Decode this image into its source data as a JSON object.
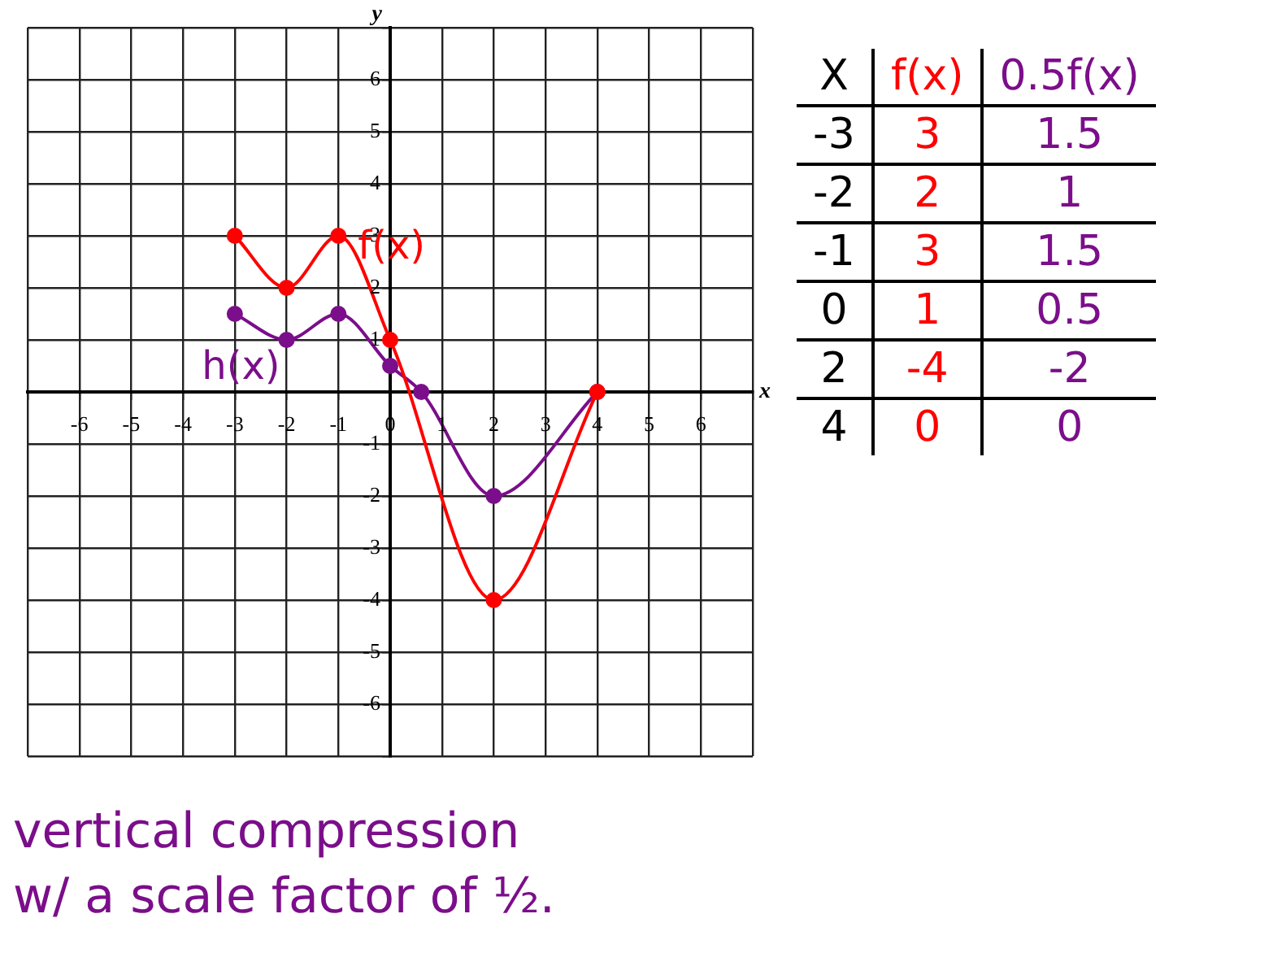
{
  "chart_data": {
    "type": "line",
    "xlabel": "x",
    "ylabel": "y",
    "xlim": [
      -7,
      7
    ],
    "ylim": [
      -7,
      7
    ],
    "xticks": [
      {
        "value": -7,
        "label": null
      },
      -6,
      -5,
      -4,
      -3,
      -2,
      -1,
      0,
      1,
      2,
      3,
      4,
      5,
      6,
      {
        "value": 7,
        "label": null
      }
    ],
    "yticks": [
      {
        "value": -7,
        "label": null
      },
      -6,
      -5,
      -4,
      -3,
      -2,
      -1,
      {
        "value": 0,
        "label": null
      },
      1,
      2,
      3,
      4,
      5,
      6,
      {
        "value": 7,
        "label": null
      }
    ],
    "grid": true,
    "legend": false,
    "marker": "circle",
    "line_style": "solid",
    "series": [
      {
        "name": "f(x)",
        "color": "#ff0000",
        "x": [
          -3,
          -2,
          -1,
          0,
          2,
          4
        ],
        "values": [
          3,
          2,
          3,
          1,
          -4,
          0
        ]
      },
      {
        "name": "h(x)",
        "color": "#7b0e8a",
        "x": [
          -3,
          -2,
          -1,
          0,
          0.6,
          2,
          4
        ],
        "values": [
          1.5,
          1,
          1.5,
          0.5,
          0,
          -2,
          0
        ]
      }
    ],
    "annotations": [
      "X",
      "f(x)",
      "0.5f(x)",
      "-3",
      "3",
      "1.5",
      "-2",
      "2",
      "1",
      "-1",
      "3",
      "1.5",
      "0",
      "1",
      "0.5",
      "2",
      "-4",
      "-2",
      "4",
      "0",
      "0",
      "vertical compression",
      "w/ a scale factor of ½."
    ]
  }
}
